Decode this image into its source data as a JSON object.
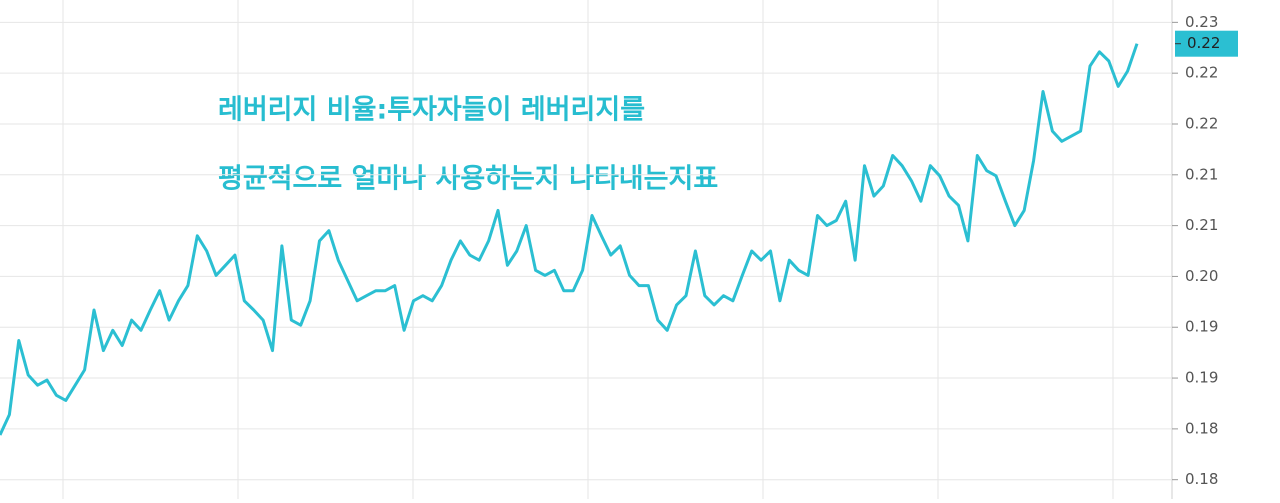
{
  "chart_data": {
    "type": "line",
    "title_lines": [
      "레버리지 비율:투자자들이 레버리지를",
      "평균적으로 얼마나 사용하는지 나타내는지표"
    ],
    "series": [
      {
        "color": "#2bbfd2",
        "values": [
          0.1844,
          0.1864,
          0.1937,
          0.1903,
          0.1893,
          0.1898,
          0.1883,
          0.1878,
          0.1893,
          0.1908,
          0.1967,
          0.1927,
          0.1947,
          0.1932,
          0.1957,
          0.1947,
          0.1967,
          0.1986,
          0.1957,
          0.1976,
          0.1991,
          0.204,
          0.2025,
          0.2001,
          0.2011,
          0.2021,
          0.1976,
          0.1967,
          0.1957,
          0.1927,
          0.203,
          0.1957,
          0.1952,
          0.1976,
          0.2035,
          0.2045,
          0.2016,
          0.1996,
          0.1976,
          0.1981,
          0.1986,
          0.1986,
          0.1991,
          0.1947,
          0.1976,
          0.1981,
          0.1976,
          0.1991,
          0.2016,
          0.2035,
          0.2021,
          0.2016,
          0.2035,
          0.2065,
          0.2011,
          0.2025,
          0.205,
          0.2006,
          0.2001,
          0.2006,
          0.1986,
          0.1986,
          0.2006,
          0.206,
          0.204,
          0.2021,
          0.203,
          0.2001,
          0.1991,
          0.1991,
          0.1957,
          0.1947,
          0.1972,
          0.1981,
          0.2025,
          0.1981,
          0.1972,
          0.1981,
          0.1976,
          0.2001,
          0.2025,
          0.2016,
          0.2025,
          0.1976,
          0.2016,
          0.2006,
          0.2001,
          0.206,
          0.205,
          0.2055,
          0.2074,
          0.2016,
          0.2109,
          0.2079,
          0.2089,
          0.2119,
          0.2109,
          0.2094,
          0.2074,
          0.2109,
          0.2099,
          0.2079,
          0.207,
          0.2035,
          0.2119,
          0.2104,
          0.2099,
          0.2074,
          0.205,
          0.2065,
          0.2114,
          0.2182,
          0.2143,
          0.2133,
          0.2138,
          0.2143,
          0.2207,
          0.2221,
          0.2212,
          0.2187,
          0.2202,
          0.2229
        ]
      }
    ],
    "last_value": {
      "value": 0.2229,
      "label": "0.22"
    },
    "ylim": [
      0.1781,
      0.2272
    ],
    "yticks": [
      {
        "value": 0.18,
        "label": "0.18"
      },
      {
        "value": 0.185,
        "label": "0.18"
      },
      {
        "value": 0.19,
        "label": "0.19"
      },
      {
        "value": 0.195,
        "label": "0.19"
      },
      {
        "value": 0.2,
        "label": "0.20"
      },
      {
        "value": 0.205,
        "label": "0.21"
      },
      {
        "value": 0.21,
        "label": "0.21"
      },
      {
        "value": 0.215,
        "label": "0.22"
      },
      {
        "value": 0.22,
        "label": "0.22"
      },
      {
        "value": 0.225,
        "label": "0.23"
      }
    ],
    "grid": true
  }
}
